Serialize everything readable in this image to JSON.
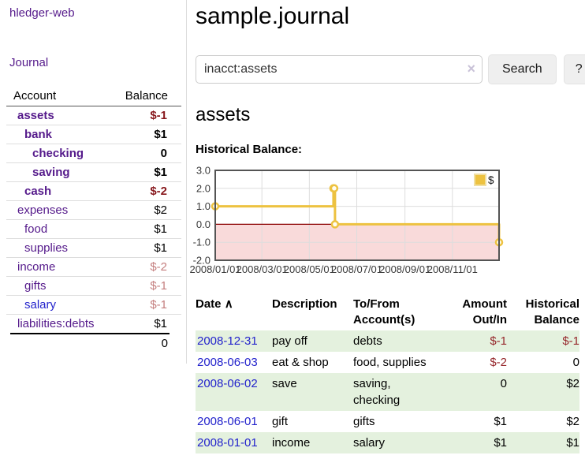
{
  "app": {
    "brand": "hledger-web",
    "nav_journal": "Journal"
  },
  "sidebar": {
    "headers": {
      "account": "Account",
      "balance": "Balance"
    },
    "accounts": [
      {
        "name": "assets",
        "depth": 0,
        "bold": true,
        "balance": "$-1",
        "tone": "neg-strong"
      },
      {
        "name": "bank",
        "depth": 1,
        "bold": true,
        "balance": "$1",
        "tone": "pos"
      },
      {
        "name": "checking",
        "depth": 2,
        "bold": true,
        "balance": "0",
        "tone": "pos"
      },
      {
        "name": "saving",
        "depth": 2,
        "bold": true,
        "balance": "$1",
        "tone": "pos"
      },
      {
        "name": "cash",
        "depth": 1,
        "bold": true,
        "balance": "$-2",
        "tone": "neg-strong"
      },
      {
        "name": "expenses",
        "depth": 0,
        "bold": false,
        "balance": "$2",
        "tone": "pos"
      },
      {
        "name": "food",
        "depth": 1,
        "bold": false,
        "balance": "$1",
        "tone": "pos"
      },
      {
        "name": "supplies",
        "depth": 1,
        "bold": false,
        "balance": "$1",
        "tone": "pos"
      },
      {
        "name": "income",
        "depth": 0,
        "bold": false,
        "balance": "$-2",
        "tone": "neg-soft"
      },
      {
        "name": "gifts",
        "depth": 1,
        "bold": false,
        "balance": "$-1",
        "tone": "neg-soft"
      },
      {
        "name": "salary",
        "depth": 1,
        "bold": false,
        "balance": "$-1",
        "tone": "neg-soft",
        "link_tone": "unvisited"
      },
      {
        "name": "liabilities:debts",
        "depth": 0,
        "bold": false,
        "balance": "$1",
        "tone": "pos"
      }
    ],
    "total": "0"
  },
  "header": {
    "title": "sample.journal"
  },
  "search": {
    "value": "inacct:assets",
    "clear_icon": "×",
    "button_label": "Search",
    "help_label": "?"
  },
  "account_page": {
    "heading": "assets",
    "chart_label": "Historical Balance:"
  },
  "chart_data": {
    "type": "line",
    "step": true,
    "title": "Historical Balance",
    "series": [
      {
        "name": "$",
        "color": "#EDC240",
        "points": [
          [
            "2008-01-01",
            1
          ],
          [
            "2008-06-01",
            2
          ],
          [
            "2008-06-02",
            2
          ],
          [
            "2008-06-03",
            0
          ],
          [
            "2008-12-31",
            -1
          ]
        ]
      }
    ],
    "x_range": [
      "2008-01-01",
      "2008-12-31"
    ],
    "x_ticks": [
      "2008/01/01",
      "2008/03/01",
      "2008/05/01",
      "2008/07/01",
      "2008/09/01",
      "2008/11/01"
    ],
    "ylim": [
      -2,
      3
    ],
    "y_ticks": [
      "3.0",
      "2.0",
      "1.0",
      "0.0",
      "-1.0",
      "-2.0"
    ],
    "legend": {
      "label": "$",
      "position": "top-right"
    },
    "grid": true,
    "negative_region_color": "#f9dada",
    "zero_line_color": "#8b0000",
    "border_color": "#545454",
    "grid_color": "#dddddd"
  },
  "register": {
    "headers": {
      "date": "Date",
      "sort_arrow": "∧",
      "description": "Description",
      "accounts": "To/From Account(s)",
      "amount": "Amount Out/In",
      "balance": "Historical Balance"
    },
    "rows": [
      {
        "date": "2008-12-31",
        "description": "pay off",
        "accounts": "debts",
        "amount": "$-1",
        "amount_tone": "neg",
        "balance": "$-1",
        "balance_tone": "neg",
        "shaded": true
      },
      {
        "date": "2008-06-03",
        "description": "eat & shop",
        "accounts": "food, supplies",
        "amount": "$-2",
        "amount_tone": "neg",
        "balance": "0",
        "balance_tone": "pos",
        "shaded": false
      },
      {
        "date": "2008-06-02",
        "description": "save",
        "accounts": "saving,\nchecking",
        "amount": "0",
        "amount_tone": "pos",
        "balance": "$2",
        "balance_tone": "pos",
        "shaded": true
      },
      {
        "date": "2008-06-01",
        "description": "gift",
        "accounts": "gifts",
        "amount": "$1",
        "amount_tone": "pos",
        "balance": "$2",
        "balance_tone": "pos",
        "shaded": false
      },
      {
        "date": "2008-01-01",
        "description": "income",
        "accounts": "salary",
        "amount": "$1",
        "amount_tone": "pos",
        "balance": "$1",
        "balance_tone": "pos",
        "shaded": true
      }
    ]
  },
  "colors": {
    "link_purple": "#551A8B",
    "link_blue": "#2323CC",
    "negative_dark": "#87171C",
    "negative_soft": "#C47E7E",
    "negative_table": "#96272B",
    "stripe_green": "#E4F1DE",
    "accent_gold": "#EDC240"
  }
}
